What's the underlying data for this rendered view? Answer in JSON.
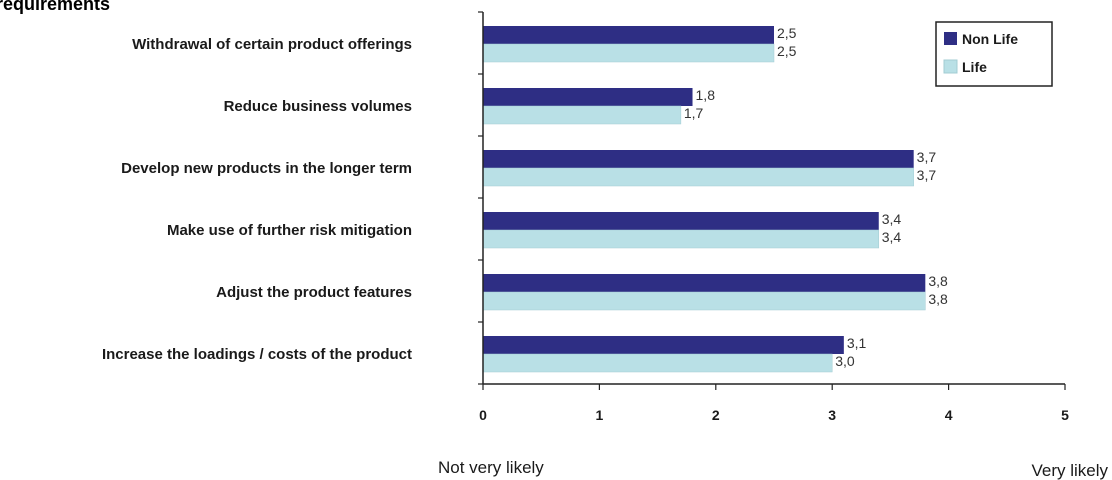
{
  "chart_data": {
    "type": "bar",
    "orientation": "horizontal",
    "title": "requirements",
    "categories": [
      "Withdrawal of certain product offerings",
      "Reduce business volumes",
      "Develop new products in the longer term",
      "Make use of further risk mitigation",
      "Adjust the product features",
      "Increase the loadings / costs of the product"
    ],
    "series": [
      {
        "name": "Non Life",
        "color": "#2e2e84",
        "values": [
          2.5,
          1.8,
          3.7,
          3.4,
          3.8,
          3.1
        ],
        "labels": [
          "2,5",
          "1,8",
          "3,7",
          "3,4",
          "3,8",
          "3,1"
        ]
      },
      {
        "name": "Life",
        "color": "#b9e0e6",
        "values": [
          2.5,
          1.7,
          3.7,
          3.4,
          3.8,
          3.0
        ],
        "labels": [
          "2,5",
          "1,7",
          "3,7",
          "3,4",
          "3,8",
          "3,0"
        ]
      }
    ],
    "xlim": [
      0,
      5
    ],
    "xticks": [
      "0",
      "1",
      "2",
      "3",
      "4",
      "5"
    ],
    "x_low_label": "Not very likely",
    "x_high_label": "Very likely",
    "legend_position": "top-right",
    "grid": false
  }
}
